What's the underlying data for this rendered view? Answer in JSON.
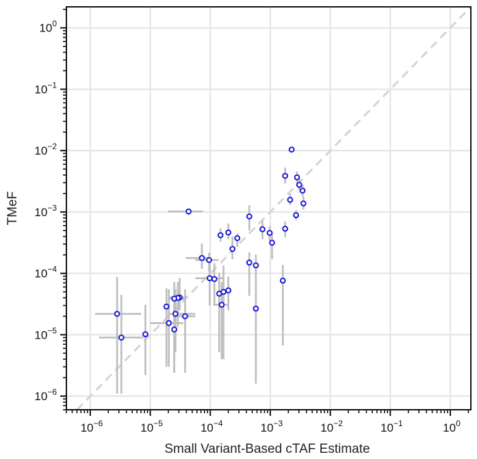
{
  "chart_data": {
    "type": "scatter",
    "title": "",
    "xlabel": "Small Variant-Based cTAF Estimate",
    "ylabel": "TMeF",
    "xscale": "log",
    "yscale": "log",
    "xlim": [
      4e-07,
      2.2
    ],
    "ylim": [
      6e-07,
      2.2
    ],
    "grid": true,
    "diagonal": "y = x (dashed)",
    "x_tick_labels": [
      {
        "value": 1e-06,
        "base": "10",
        "exp": "−6"
      },
      {
        "value": 1e-05,
        "base": "10",
        "exp": "−5"
      },
      {
        "value": 0.0001,
        "base": "10",
        "exp": "−4"
      },
      {
        "value": 0.001,
        "base": "10",
        "exp": "−3"
      },
      {
        "value": 0.01,
        "base": "10",
        "exp": "−2"
      },
      {
        "value": 0.1,
        "base": "10",
        "exp": "−1"
      },
      {
        "value": 1,
        "base": "10",
        "exp": "0"
      }
    ],
    "y_tick_labels": [
      {
        "value": 1e-06,
        "base": "10",
        "exp": "−6"
      },
      {
        "value": 1e-05,
        "base": "10",
        "exp": "−5"
      },
      {
        "value": 0.0001,
        "base": "10",
        "exp": "−4"
      },
      {
        "value": 0.001,
        "base": "10",
        "exp": "−3"
      },
      {
        "value": 0.01,
        "base": "10",
        "exp": "−2"
      },
      {
        "value": 0.1,
        "base": "10",
        "exp": "−1"
      },
      {
        "value": 1,
        "base": "10",
        "exp": "0"
      }
    ],
    "points": [
      {
        "x": 0.00227,
        "y": 0.0104,
        "xlo": 0.00227,
        "xhi": 0.00227,
        "ylo": 0.0104,
        "yhi": 0.0104
      },
      {
        "x": 0.00177,
        "y": 0.00388,
        "xlo": 0.00177,
        "xhi": 0.00177,
        "ylo": 0.0029,
        "yhi": 0.0053
      },
      {
        "x": 0.00279,
        "y": 0.00367,
        "xlo": 0.00279,
        "xhi": 0.00279,
        "ylo": 0.0029,
        "yhi": 0.0046
      },
      {
        "x": 0.00304,
        "y": 0.00277,
        "xlo": 0.00304,
        "xhi": 0.00304,
        "ylo": 0.0023,
        "yhi": 0.0034
      },
      {
        "x": 0.00345,
        "y": 0.00223,
        "xlo": 0.00345,
        "xhi": 0.00345,
        "ylo": 0.0018,
        "yhi": 0.0028
      },
      {
        "x": 0.00214,
        "y": 0.00158,
        "xlo": 0.00214,
        "xhi": 0.00214,
        "ylo": 0.0013,
        "yhi": 0.002
      },
      {
        "x": 0.00357,
        "y": 0.00138,
        "xlo": 0.00357,
        "xhi": 0.00357,
        "ylo": 0.0011,
        "yhi": 0.0018
      },
      {
        "x": 4.35e-05,
        "y": 0.00102,
        "xlo": 1.96e-05,
        "xhi": 7.57e-05,
        "ylo": 0.00089,
        "yhi": 0.00102
      },
      {
        "x": 0.00269,
        "y": 0.000887,
        "xlo": 0.00269,
        "xhi": 0.00269,
        "ylo": 0.00074,
        "yhi": 0.00107
      },
      {
        "x": 0.000447,
        "y": 0.000847,
        "xlo": 0.000447,
        "xhi": 0.000447,
        "ylo": 0.0005,
        "yhi": 0.00129
      },
      {
        "x": 0.00177,
        "y": 0.000534,
        "xlo": 0.00177,
        "xhi": 0.00177,
        "ylo": 0.00039,
        "yhi": 0.0007
      },
      {
        "x": 0.000741,
        "y": 0.000523,
        "xlo": 0.000741,
        "xhi": 0.000741,
        "ylo": 0.00036,
        "yhi": 0.00072
      },
      {
        "x": 0.0002,
        "y": 0.000463,
        "xlo": 0.0002,
        "xhi": 0.0002,
        "ylo": 0.00036,
        "yhi": 0.00065
      },
      {
        "x": 0.000977,
        "y": 0.000456,
        "xlo": 0.000977,
        "xhi": 0.000977,
        "ylo": 0.00034,
        "yhi": 0.00058
      },
      {
        "x": 0.000148,
        "y": 0.000419,
        "xlo": 0.000148,
        "xhi": 0.000148,
        "ylo": 0.00033,
        "yhi": 0.00054
      },
      {
        "x": 0.000282,
        "y": 0.000375,
        "xlo": 0.000282,
        "xhi": 0.000282,
        "ylo": 0.00027,
        "yhi": 0.00045
      },
      {
        "x": 0.00107,
        "y": 0.000316,
        "xlo": 0.00107,
        "xhi": 0.00107,
        "ylo": 0.00017,
        "yhi": 0.00045
      },
      {
        "x": 0.000234,
        "y": 0.00025,
        "xlo": 0.000234,
        "xhi": 0.000234,
        "ylo": 0.00017,
        "yhi": 0.0004
      },
      {
        "x": 7.24e-05,
        "y": 0.000178,
        "xlo": 3.89e-05,
        "xhi": 9.77e-05,
        "ylo": 0.000118,
        "yhi": 0.000306
      },
      {
        "x": 9.55e-05,
        "y": 0.000165,
        "xlo": 5.62e-05,
        "xhi": 0.000138,
        "ylo": 0.000107,
        "yhi": 0.000217
      },
      {
        "x": 0.000447,
        "y": 0.00015,
        "xlo": 0.000447,
        "xhi": 0.000447,
        "ylo": 4.3e-05,
        "yhi": 0.00022
      },
      {
        "x": 0.000575,
        "y": 0.000135,
        "xlo": 0.000575,
        "xhi": 0.000575,
        "ylo": 5.7e-05,
        "yhi": 0.000202
      },
      {
        "x": 9.77e-05,
        "y": 8.34e-05,
        "xlo": 5.62e-05,
        "xhi": 0.000167,
        "ylo": 2.97e-05,
        "yhi": 0.000147
      },
      {
        "x": 0.000117,
        "y": 8.09e-05,
        "xlo": 0.000117,
        "xhi": 0.000117,
        "ylo": 2.97e-05,
        "yhi": 0.000147
      },
      {
        "x": 0.00162,
        "y": 7.62e-05,
        "xlo": 0.00162,
        "xhi": 0.00162,
        "ylo": 6.7e-06,
        "yhi": 0.000138
      },
      {
        "x": 0.0002,
        "y": 5.28e-05,
        "xlo": 0.0002,
        "xhi": 0.0002,
        "ylo": 2.5e-05,
        "yhi": 8.8e-05
      },
      {
        "x": 0.000166,
        "y": 4.99e-05,
        "xlo": 0.000166,
        "xhi": 0.000166,
        "ylo": 4e-06,
        "yhi": 0.000135
      },
      {
        "x": 0.000141,
        "y": 4.67e-05,
        "xlo": 0.000141,
        "xhi": 0.000141,
        "ylo": 5.2e-06,
        "yhi": 0.000102
      },
      {
        "x": 3.09e-05,
        "y": 4.05e-05,
        "xlo": 2.08e-05,
        "xhi": 3.98e-05,
        "ylo": 2.5e-05,
        "yhi": 8.4e-05
      },
      {
        "x": 2.88e-05,
        "y": 3.98e-05,
        "xlo": 2.08e-05,
        "xhi": 3.98e-05,
        "ylo": 1.33e-05,
        "yhi": 7.24e-05
      },
      {
        "x": 2.51e-05,
        "y": 3.88e-05,
        "xlo": 2.08e-05,
        "xhi": 3.98e-05,
        "ylo": 2.4e-06,
        "yhi": 7.24e-05
      },
      {
        "x": 0.000155,
        "y": 3.08e-05,
        "xlo": 0.000112,
        "xhi": 0.0002,
        "ylo": 4e-06,
        "yhi": 7.24e-05
      },
      {
        "x": 1.86e-05,
        "y": 2.88e-05,
        "xlo": 1.86e-05,
        "xhi": 1.86e-05,
        "ylo": 3e-06,
        "yhi": 5.7e-05
      },
      {
        "x": 0.000575,
        "y": 2.67e-05,
        "xlo": 0.000575,
        "xhi": 0.000575,
        "ylo": 1.6e-06,
        "yhi": 7.24e-05
      },
      {
        "x": 2.8e-06,
        "y": 2.19e-05,
        "xlo": 1.2e-06,
        "xhi": 7e-06,
        "ylo": 1.1e-06,
        "yhi": 8.8e-05
      },
      {
        "x": 2.63e-05,
        "y": 2.19e-05,
        "xlo": 2.08e-05,
        "xhi": 5.62e-05,
        "ylo": 5.2e-06,
        "yhi": 5.5e-05
      },
      {
        "x": 3.8e-05,
        "y": 2e-05,
        "xlo": 2.51e-05,
        "xhi": 5.62e-05,
        "ylo": 2.4e-06,
        "yhi": 5.5e-05
      },
      {
        "x": 2.04e-05,
        "y": 1.55e-05,
        "xlo": 1e-05,
        "xhi": 3.55e-05,
        "ylo": 3e-06,
        "yhi": 5.5e-05
      },
      {
        "x": 2.51e-05,
        "y": 1.22e-05,
        "xlo": 2.51e-05,
        "xhi": 2.51e-05,
        "ylo": 2.4e-06,
        "yhi": 3.09e-05
      },
      {
        "x": 8.3e-06,
        "y": 1.02e-05,
        "xlo": 8.3e-06,
        "xhi": 8.3e-06,
        "ylo": 2.2e-06,
        "yhi": 3.09e-05
      },
      {
        "x": 3.3e-06,
        "y": 9e-06,
        "xlo": 1.4e-06,
        "xhi": 7.7e-06,
        "ylo": 1.1e-06,
        "yhi": 4.47e-05
      }
    ]
  }
}
